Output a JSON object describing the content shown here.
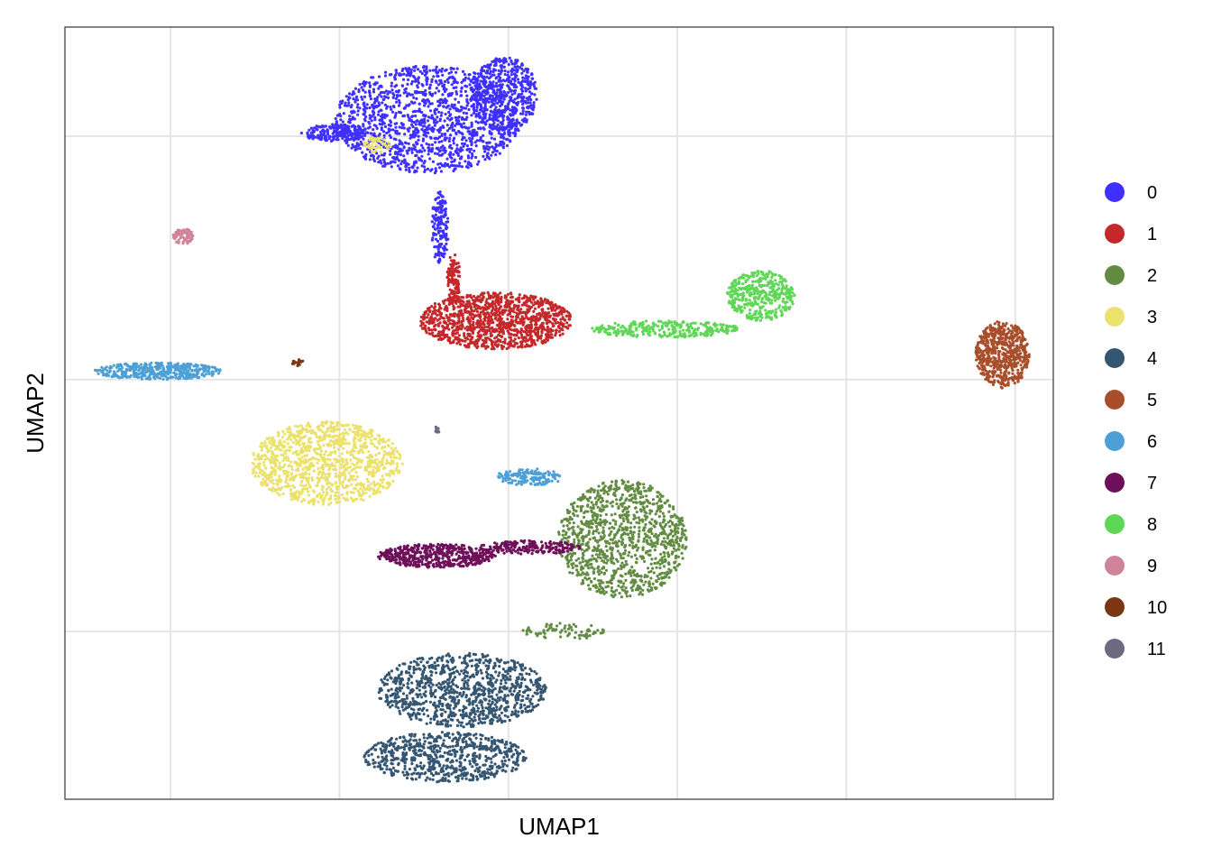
{
  "chart_data": {
    "type": "scatter",
    "title": "",
    "xlabel": "UMAP1",
    "ylabel": "UMAP2",
    "xlim": [
      0,
      5.85
    ],
    "ylim": [
      0,
      4.6
    ],
    "x_gridlines": [
      0.625,
      1.625,
      2.625,
      3.625,
      4.625,
      5.625
    ],
    "y_gridlines": [
      1.0,
      2.5,
      3.95
    ],
    "grid": true,
    "axis_ticks_shown": false,
    "legend": "right",
    "series": [
      {
        "name": "0",
        "color": "#3F30FF",
        "clusters": [
          {
            "cx": 2.15,
            "cy": 4.05,
            "rx": 0.55,
            "ry": 0.32,
            "n": 1400
          },
          {
            "cx": 2.6,
            "cy": 4.2,
            "rx": 0.2,
            "ry": 0.22,
            "n": 500
          },
          {
            "cx": 1.6,
            "cy": 3.97,
            "rx": 0.2,
            "ry": 0.05,
            "n": 200
          },
          {
            "cx": 2.22,
            "cy": 3.4,
            "rx": 0.05,
            "ry": 0.22,
            "n": 150
          }
        ]
      },
      {
        "name": "1",
        "color": "#C4282B",
        "clusters": [
          {
            "cx": 2.55,
            "cy": 2.85,
            "rx": 0.45,
            "ry": 0.17,
            "n": 1200
          },
          {
            "cx": 2.3,
            "cy": 3.1,
            "rx": 0.04,
            "ry": 0.15,
            "n": 120
          }
        ]
      },
      {
        "name": "2",
        "color": "#638C43",
        "clusters": [
          {
            "cx": 3.3,
            "cy": 1.55,
            "rx": 0.38,
            "ry": 0.35,
            "n": 1100
          },
          {
            "cx": 2.95,
            "cy": 1.0,
            "rx": 0.25,
            "ry": 0.05,
            "n": 80
          }
        ]
      },
      {
        "name": "3",
        "color": "#EBE26D",
        "clusters": [
          {
            "cx": 1.55,
            "cy": 2.0,
            "rx": 0.45,
            "ry": 0.25,
            "n": 1100
          },
          {
            "cx": 1.85,
            "cy": 3.9,
            "rx": 0.08,
            "ry": 0.05,
            "n": 50
          }
        ]
      },
      {
        "name": "4",
        "color": "#345672",
        "clusters": [
          {
            "cx": 2.35,
            "cy": 0.65,
            "rx": 0.5,
            "ry": 0.22,
            "n": 1000
          },
          {
            "cx": 2.25,
            "cy": 0.25,
            "rx": 0.48,
            "ry": 0.15,
            "n": 700
          }
        ]
      },
      {
        "name": "5",
        "color": "#A94E2A",
        "clusters": [
          {
            "cx": 5.55,
            "cy": 2.65,
            "rx": 0.16,
            "ry": 0.2,
            "n": 600
          }
        ]
      },
      {
        "name": "6",
        "color": "#4DA0D6",
        "clusters": [
          {
            "cx": 0.55,
            "cy": 2.55,
            "rx": 0.38,
            "ry": 0.05,
            "n": 400
          },
          {
            "cx": 2.75,
            "cy": 1.92,
            "rx": 0.2,
            "ry": 0.05,
            "n": 150
          }
        ]
      },
      {
        "name": "7",
        "color": "#6E1059",
        "clusters": [
          {
            "cx": 2.2,
            "cy": 1.45,
            "rx": 0.35,
            "ry": 0.07,
            "n": 500
          },
          {
            "cx": 2.75,
            "cy": 1.5,
            "rx": 0.3,
            "ry": 0.04,
            "n": 200
          }
        ]
      },
      {
        "name": "8",
        "color": "#5FD756",
        "clusters": [
          {
            "cx": 4.12,
            "cy": 3.0,
            "rx": 0.2,
            "ry": 0.15,
            "n": 400
          },
          {
            "cx": 3.55,
            "cy": 2.8,
            "rx": 0.45,
            "ry": 0.05,
            "n": 300
          }
        ]
      },
      {
        "name": "9",
        "color": "#D0849A",
        "clusters": [
          {
            "cx": 0.7,
            "cy": 3.35,
            "rx": 0.06,
            "ry": 0.05,
            "n": 80
          }
        ]
      },
      {
        "name": "10",
        "color": "#7B3714",
        "clusters": [
          {
            "cx": 1.38,
            "cy": 2.6,
            "rx": 0.04,
            "ry": 0.02,
            "n": 20
          }
        ]
      },
      {
        "name": "11",
        "color": "#6C6A80",
        "clusters": [
          {
            "cx": 2.2,
            "cy": 2.2,
            "rx": 0.02,
            "ry": 0.02,
            "n": 10
          }
        ]
      }
    ]
  }
}
